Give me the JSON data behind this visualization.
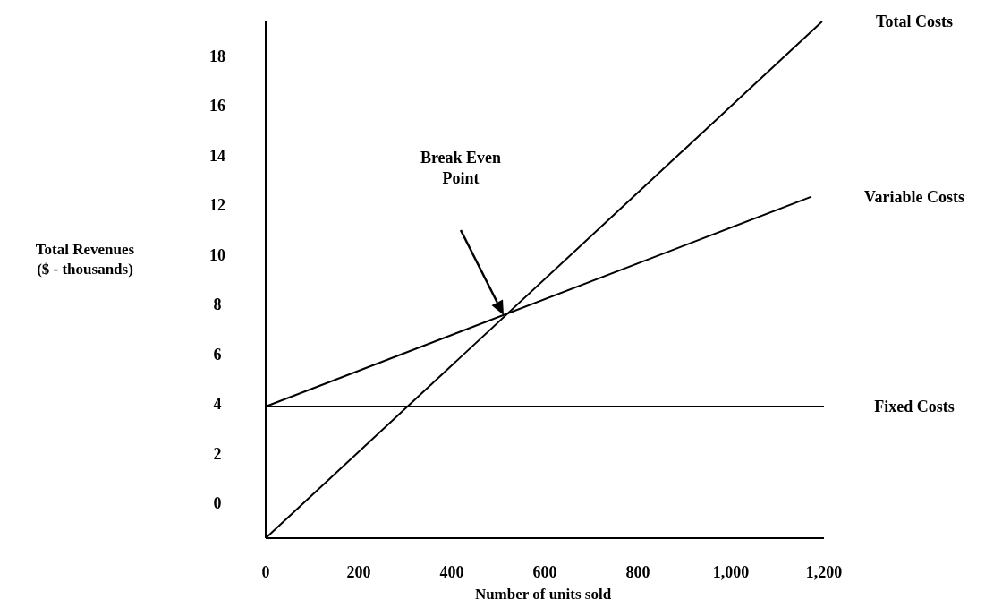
{
  "chart_data": {
    "type": "line",
    "xlabel": "Number of units sold",
    "ylabel": "Total Revenues\n($ - thousands)",
    "xlim": [
      0,
      1200
    ],
    "ylim": [
      -1.4,
      19.4
    ],
    "xticks": [
      0,
      200,
      400,
      600,
      800,
      {
        "value": 1000,
        "label": "1,000"
      },
      {
        "value": 1200,
        "label": "1,200"
      }
    ],
    "yticks": [
      0,
      2,
      4,
      6,
      8,
      10,
      12,
      14,
      16,
      18
    ],
    "grid": false,
    "legend": false,
    "marker": "none",
    "line_style": "solid",
    "series": [
      {
        "name": "Total Costs",
        "color": "#000000",
        "x": [
          0,
          1196
        ],
        "values": [
          -1.4,
          19.4
        ]
      },
      {
        "name": "Variable Costs",
        "color": "#000000",
        "x": [
          0,
          1173
        ],
        "values": [
          3.9,
          12.35
        ]
      },
      {
        "name": "Fixed Costs",
        "color": "#000000",
        "x": [
          0,
          1200
        ],
        "values": [
          3.9,
          3.9
        ]
      }
    ],
    "annotations": [
      "Break Even\nPoint"
    ]
  }
}
